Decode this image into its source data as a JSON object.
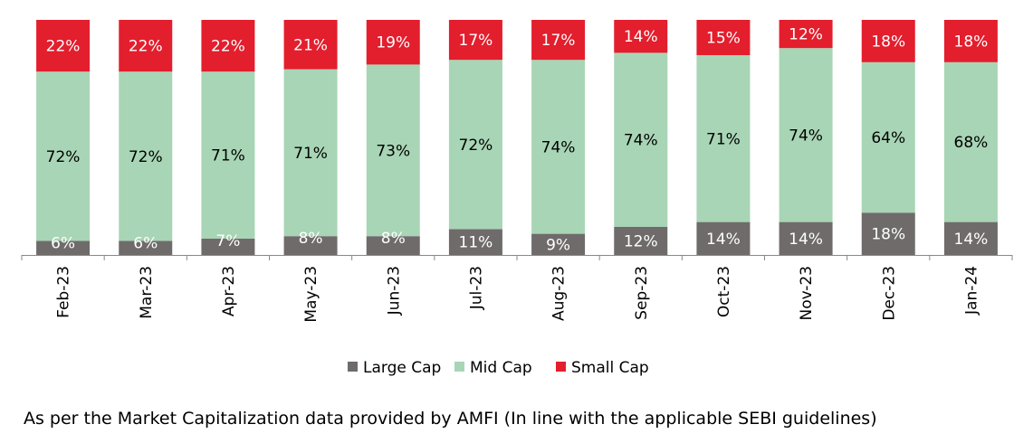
{
  "chart_data": {
    "type": "bar",
    "stacked": true,
    "percent_stacked": true,
    "categories": [
      "Feb-23",
      "Mar-23",
      "Apr-23",
      "May-23",
      "Jun-23",
      "Jul-23",
      "Aug-23",
      "Sep-23",
      "Oct-23",
      "Nov-23",
      "Dec-23",
      "Jan-24"
    ],
    "series": [
      {
        "name": "Large Cap",
        "color": "#6f6b6b",
        "values": [
          6,
          6,
          7,
          8,
          8,
          11,
          9,
          12,
          14,
          14,
          18,
          14
        ],
        "labels": [
          "6%",
          "6%",
          "7%",
          "8%",
          "8%",
          "11%",
          "9%",
          "12%",
          "14%",
          "14%",
          "18%",
          "14%"
        ]
      },
      {
        "name": "Mid Cap",
        "color": "#a8d5b5",
        "values": [
          72,
          72,
          71,
          71,
          73,
          72,
          74,
          74,
          71,
          74,
          64,
          68
        ],
        "labels": [
          "72%",
          "72%",
          "71%",
          "71%",
          "73%",
          "72%",
          "74%",
          "74%",
          "71%",
          "74%",
          "64%",
          "68%"
        ]
      },
      {
        "name": "Small Cap",
        "color": "#e31e2d",
        "values": [
          22,
          22,
          22,
          21,
          19,
          17,
          17,
          14,
          15,
          12,
          18,
          18
        ],
        "labels": [
          "22%",
          "22%",
          "22%",
          "21%",
          "19%",
          "17%",
          "17%",
          "14%",
          "15%",
          "12%",
          "18%",
          "18%"
        ]
      }
    ],
    "legend_position": "bottom",
    "grid": false,
    "xlabel": "",
    "ylabel": "",
    "title": ""
  },
  "footnote": "As per the Market Capitalization data provided by AMFI (In line with the applicable SEBI guidelines)"
}
